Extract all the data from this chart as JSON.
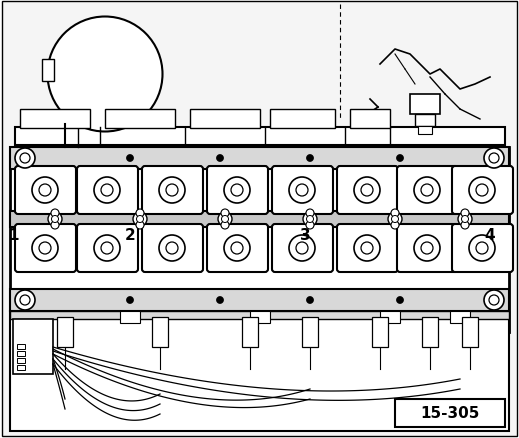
{
  "fig_width": 5.19,
  "fig_height": 4.39,
  "dpi": 100,
  "bg_color": "#ffffff",
  "black": "#000000",
  "white": "#ffffff",
  "light_gray": "#d8d8d8",
  "label_15_305": "15-305",
  "numbers": [
    "1",
    "2",
    "3",
    "4"
  ]
}
